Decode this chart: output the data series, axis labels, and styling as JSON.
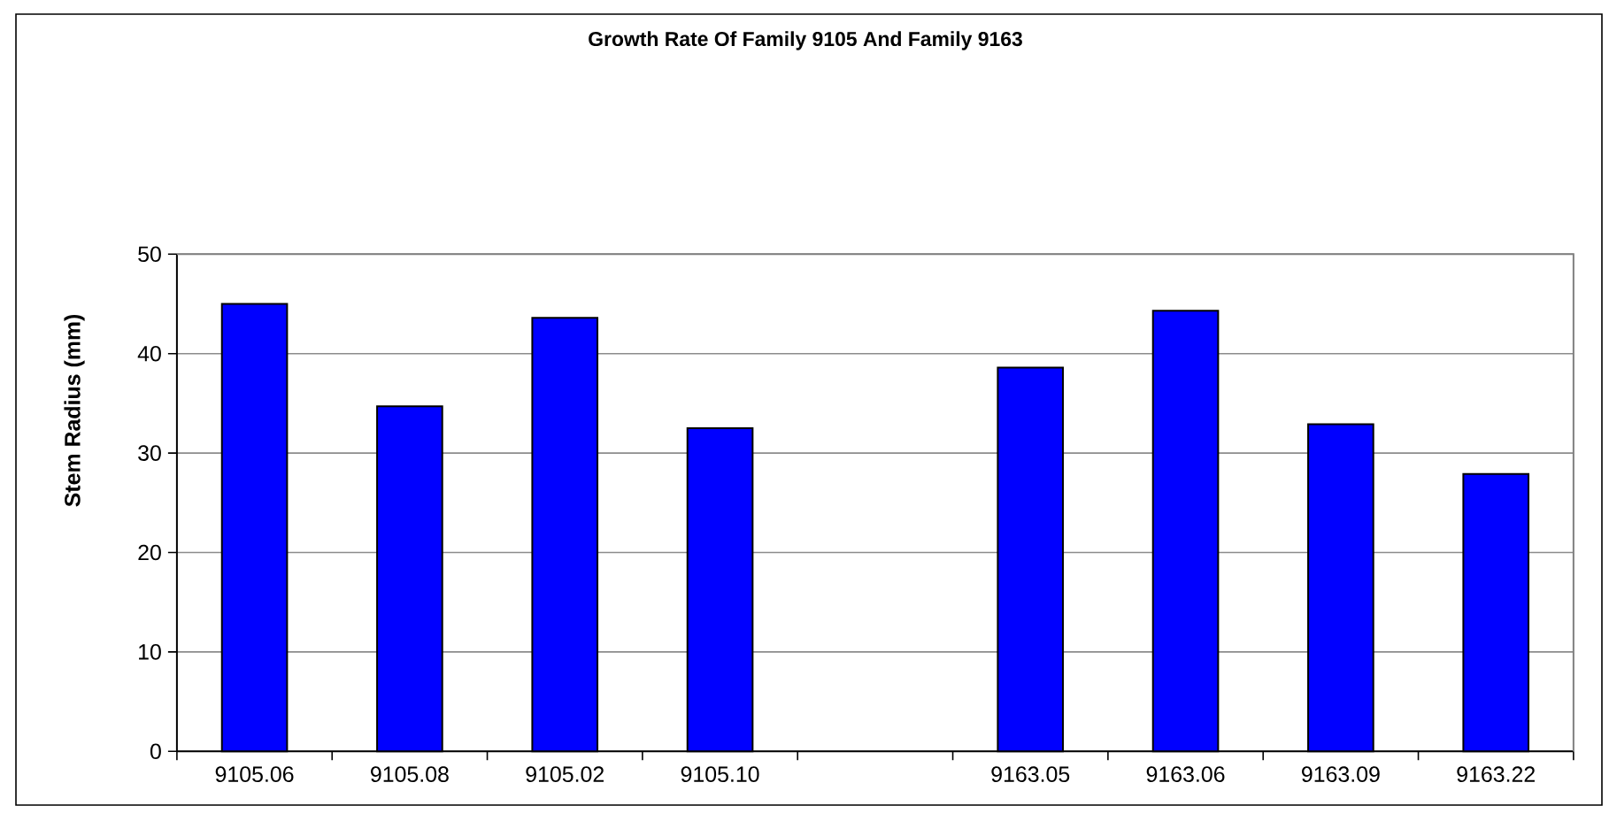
{
  "chart_data": {
    "type": "bar",
    "title": "Growth Rate Of Family 9105 And Family 9163",
    "ylabel": "Stem Radius (mm)",
    "categories": [
      "9105.06",
      "9105.08",
      "9105.02",
      "9105.10",
      null,
      "9163.05",
      "9163.06",
      "9163.09",
      "9163.22"
    ],
    "values": [
      45.0,
      34.7,
      43.6,
      32.5,
      null,
      38.6,
      44.3,
      32.9,
      27.9
    ],
    "color": "#0000ff",
    "ylim": [
      0,
      50
    ],
    "yticks": [
      0,
      10,
      20,
      30,
      40,
      50
    ],
    "grid": "y"
  }
}
